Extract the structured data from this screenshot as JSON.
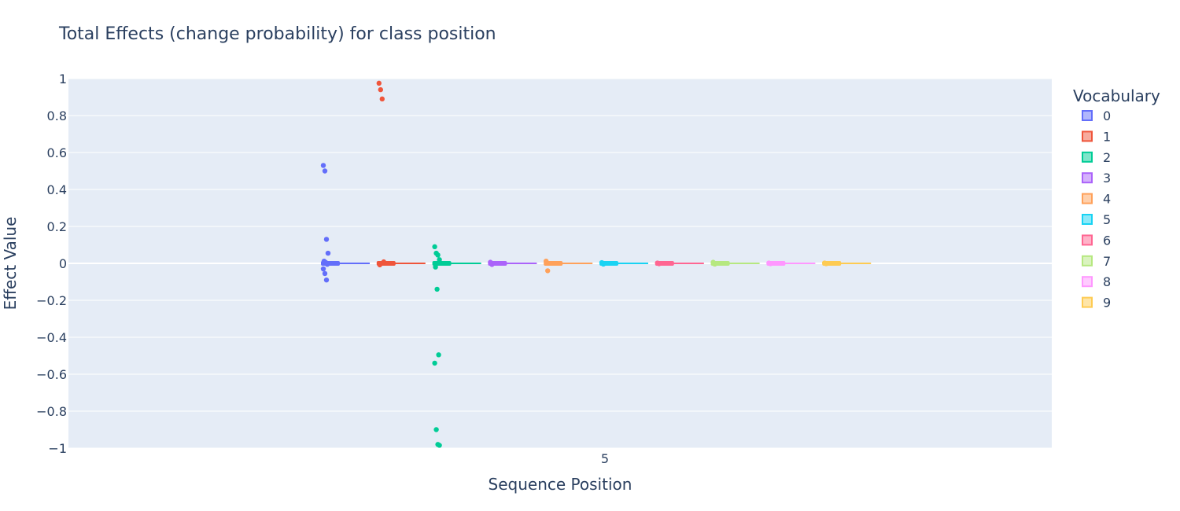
{
  "chart_data": {
    "type": "box",
    "title": "Total Effects (change probability) for class position",
    "xlabel": "Sequence Position",
    "ylabel": "Effect Value",
    "x_ticks": [
      "5"
    ],
    "ylim": [
      -1,
      1
    ],
    "y_ticks": [
      1,
      0.8,
      0.6,
      0.4,
      0.2,
      0,
      -0.2,
      -0.4,
      -0.6,
      -0.8,
      -1
    ],
    "y_tick_labels": [
      "1",
      "0.8",
      "0.6",
      "0.4",
      "0.2",
      "0",
      "−0.2",
      "−0.4",
      "−0.6",
      "−0.8",
      "−1"
    ],
    "grid": true,
    "legend_position": "right",
    "legend_title": "Vocabulary",
    "series": [
      {
        "name": "0",
        "color": "#636efa",
        "outliers": [
          0.53,
          0.5,
          0.13,
          0.055,
          0.012,
          0.005,
          -0.005,
          -0.03,
          -0.055,
          -0.09
        ]
      },
      {
        "name": "1",
        "color": "#ef553b",
        "outliers": [
          0.975,
          0.94,
          0.89,
          0.008,
          -0.008
        ]
      },
      {
        "name": "2",
        "color": "#00cc96",
        "outliers": [
          0.09,
          0.055,
          0.045,
          0.02,
          -0.02,
          -0.14,
          -0.495,
          -0.54,
          -0.9,
          -0.98,
          -0.985
        ]
      },
      {
        "name": "3",
        "color": "#ab63fa",
        "outliers": [
          0.006,
          -0.006
        ]
      },
      {
        "name": "4",
        "color": "#ffa15a",
        "outliers": [
          0.012,
          -0.04
        ]
      },
      {
        "name": "5",
        "color": "#19d3f3",
        "outliers": [
          0.004,
          -0.004
        ]
      },
      {
        "name": "6",
        "color": "#ff6692",
        "outliers": [
          0.002,
          -0.002
        ]
      },
      {
        "name": "7",
        "color": "#b6e880",
        "outliers": [
          0.006,
          -0.004
        ]
      },
      {
        "name": "8",
        "color": "#ff97ff",
        "outliers": [
          0.002,
          -0.002
        ]
      },
      {
        "name": "9",
        "color": "#fecb52",
        "outliers": [
          0.002,
          -0.002
        ]
      }
    ]
  }
}
